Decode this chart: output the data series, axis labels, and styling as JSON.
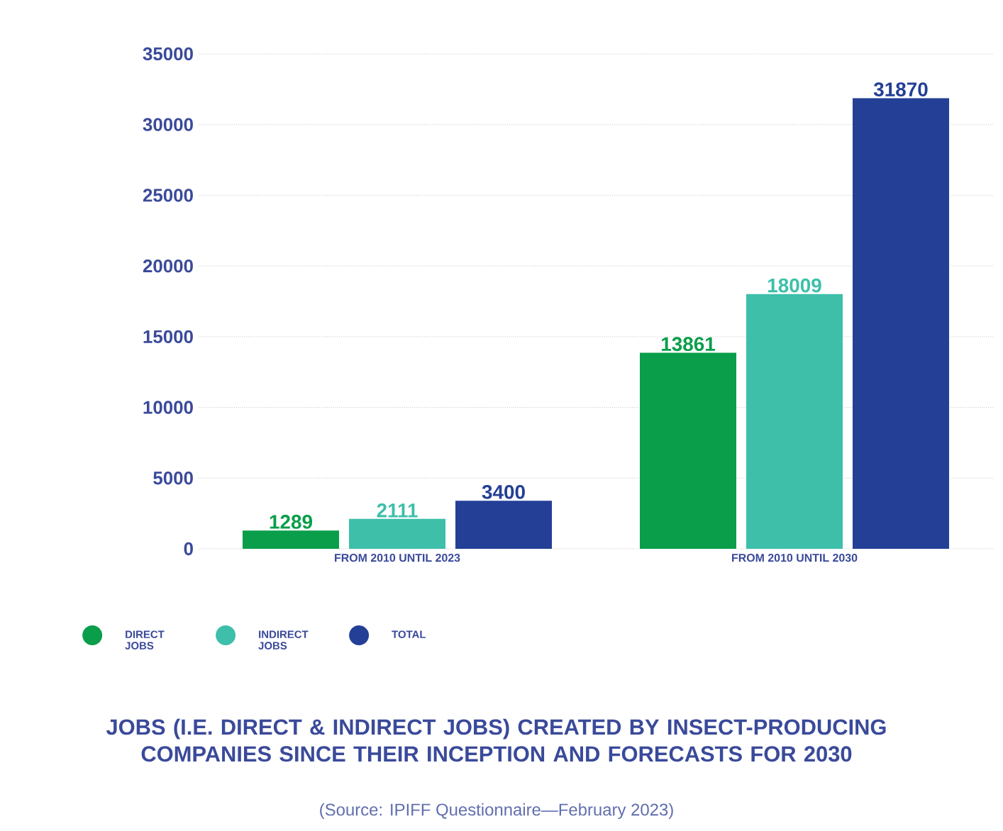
{
  "chart_data": {
    "type": "bar",
    "title": "JOBS (I.E. DIRECT & INDIRECT JOBS) CREATED BY INSECT-PRODUCING COMPANIES SINCE THEIR INCEPTION AND FORECASTS FOR 2030",
    "annotations": [
      "(Source: IPIFF Questionnaire—February 2023)"
    ],
    "categories": [
      "FROM 2010 UNTIL 2023",
      "FROM 2010 UNTIL 2030"
    ],
    "series": [
      {
        "name": "DIRECT JOBS",
        "color": "#0a9e4a",
        "values": [
          1289,
          13861
        ]
      },
      {
        "name": "INDIRECT JOBS",
        "color": "#3dbfaa",
        "values": [
          2111,
          18009
        ]
      },
      {
        "name": "TOTAL",
        "color": "#233f96",
        "values": [
          3400,
          31870
        ]
      }
    ],
    "ylim": [
      0,
      35000
    ],
    "yticks": [
      0,
      5000,
      10000,
      15000,
      20000,
      25000,
      30000,
      35000
    ],
    "grid": "y",
    "legend": "bottom",
    "data_labels": true
  }
}
